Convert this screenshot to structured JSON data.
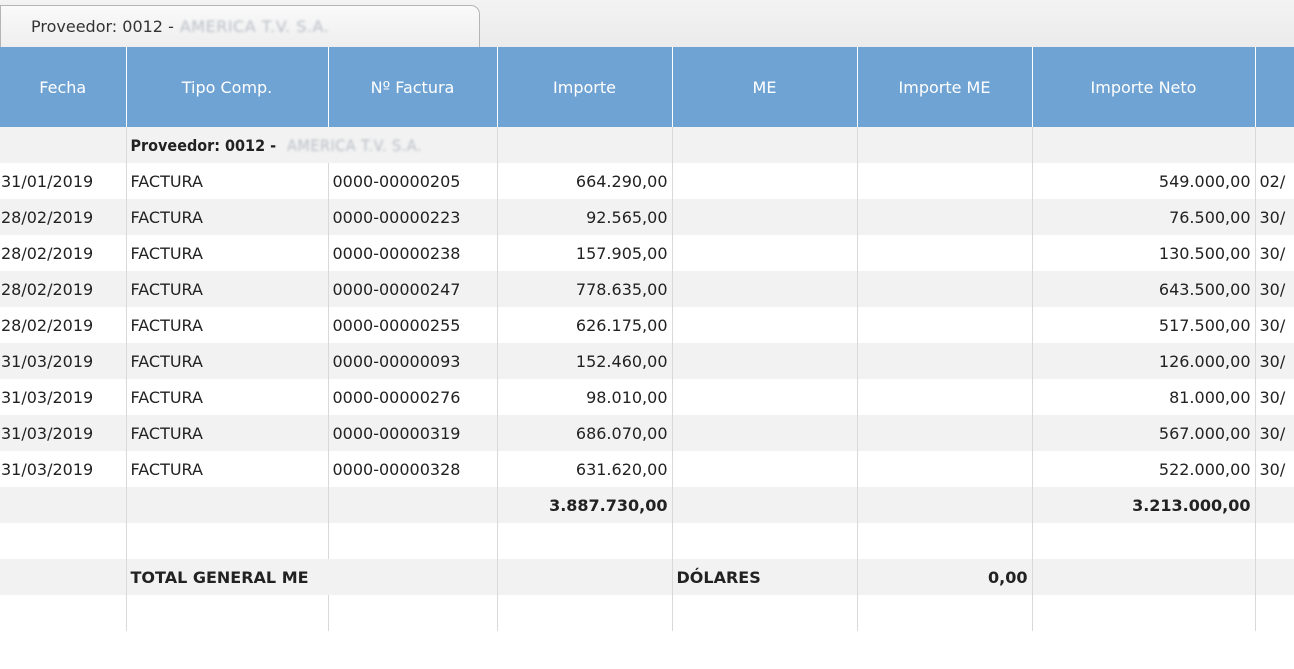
{
  "tab": {
    "label": "Proveedor: 0012 -",
    "name_blurred": "AMERICA T.V. S.A."
  },
  "columns": [
    "Fecha",
    "Tipo Comp.",
    "Nº Factura",
    "Importe",
    "ME",
    "Importe ME",
    "Importe Neto",
    ""
  ],
  "group": {
    "label": "Proveedor: 0012 -",
    "name_blurred": "AMERICA T.V. S.A."
  },
  "rows": [
    {
      "fecha": "31/01/2019",
      "tipo": "FACTURA",
      "factura": "0000-00000205",
      "importe": "664.290,00",
      "me": "",
      "importe_me": "",
      "neto": "549.000,00",
      "extra": "02/"
    },
    {
      "fecha": "28/02/2019",
      "tipo": "FACTURA",
      "factura": "0000-00000223",
      "importe": "92.565,00",
      "me": "",
      "importe_me": "",
      "neto": "76.500,00",
      "extra": "30/"
    },
    {
      "fecha": "28/02/2019",
      "tipo": "FACTURA",
      "factura": "0000-00000238",
      "importe": "157.905,00",
      "me": "",
      "importe_me": "",
      "neto": "130.500,00",
      "extra": "30/"
    },
    {
      "fecha": "28/02/2019",
      "tipo": "FACTURA",
      "factura": "0000-00000247",
      "importe": "778.635,00",
      "me": "",
      "importe_me": "",
      "neto": "643.500,00",
      "extra": "30/"
    },
    {
      "fecha": "28/02/2019",
      "tipo": "FACTURA",
      "factura": "0000-00000255",
      "importe": "626.175,00",
      "me": "",
      "importe_me": "",
      "neto": "517.500,00",
      "extra": "30/"
    },
    {
      "fecha": "31/03/2019",
      "tipo": "FACTURA",
      "factura": "0000-00000093",
      "importe": "152.460,00",
      "me": "",
      "importe_me": "",
      "neto": "126.000,00",
      "extra": "30/"
    },
    {
      "fecha": "31/03/2019",
      "tipo": "FACTURA",
      "factura": "0000-00000276",
      "importe": "98.010,00",
      "me": "",
      "importe_me": "",
      "neto": "81.000,00",
      "extra": "30/"
    },
    {
      "fecha": "31/03/2019",
      "tipo": "FACTURA",
      "factura": "0000-00000319",
      "importe": "686.070,00",
      "me": "",
      "importe_me": "",
      "neto": "567.000,00",
      "extra": "30/"
    },
    {
      "fecha": "31/03/2019",
      "tipo": "FACTURA",
      "factura": "0000-00000328",
      "importe": "631.620,00",
      "me": "",
      "importe_me": "",
      "neto": "522.000,00",
      "extra": "30/"
    }
  ],
  "subtotal": {
    "importe": "3.887.730,00",
    "neto": "3.213.000,00"
  },
  "total_general": {
    "label": "TOTAL GENERAL ME",
    "currency": "DÓLARES",
    "value": "0,00"
  },
  "colors": {
    "header_bg": "#6fa3d4",
    "stripe": "#f2f2f2"
  }
}
